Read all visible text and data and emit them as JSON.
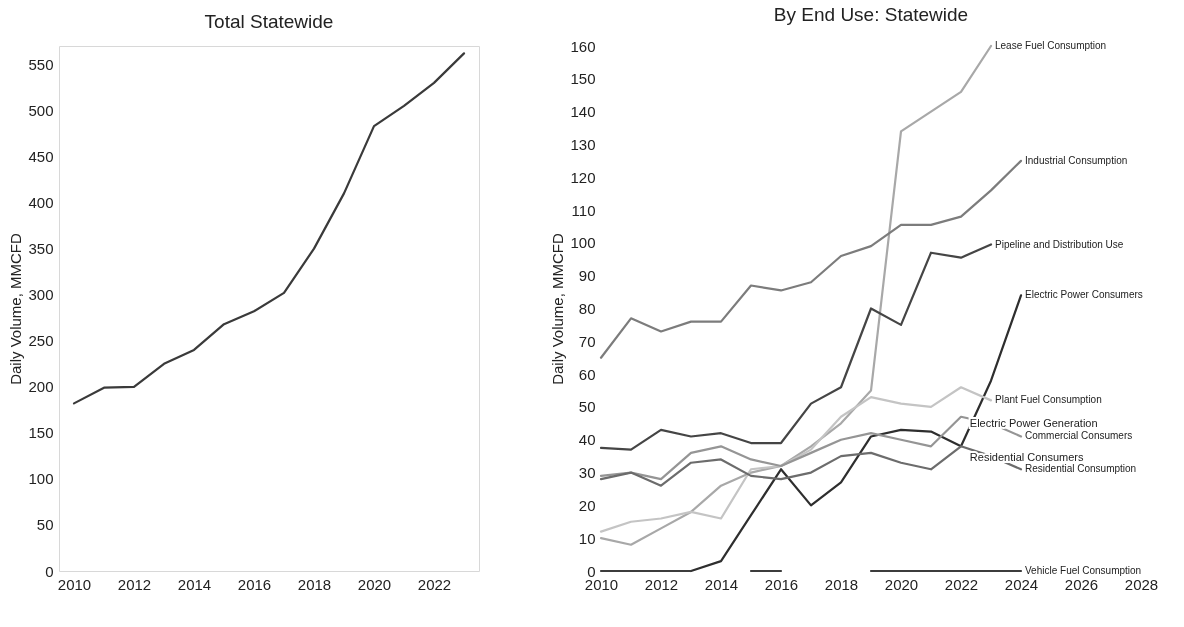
{
  "chart_data": [
    {
      "type": "line",
      "title": "Total Statewide",
      "ylabel": "Daily Volume, MMCFD",
      "x": [
        2010,
        2011,
        2012,
        2013,
        2014,
        2015,
        2016,
        2017,
        2018,
        2019,
        2020,
        2021,
        2022,
        2023
      ],
      "values": [
        182,
        199,
        200,
        225,
        240,
        268,
        282,
        302,
        350,
        410,
        483,
        505,
        530,
        562
      ],
      "color": "#3a3a3a",
      "xlim": [
        2009.5,
        2023.5
      ],
      "ylim": [
        0,
        570
      ],
      "xticks": [
        2010,
        2012,
        2014,
        2016,
        2018,
        2020,
        2022
      ],
      "yticks": [
        0,
        50,
        100,
        150,
        200,
        250,
        300,
        350,
        400,
        450,
        500,
        550
      ],
      "grid": false
    },
    {
      "type": "line",
      "title": "By End Use: Statewide",
      "ylabel": "Daily Volume, MMCFD",
      "series": [
        {
          "name": "Lease Fuel Consumption",
          "color": "#a8a8a8",
          "x": [
            2010,
            2011,
            2012,
            2013,
            2014,
            2015,
            2016,
            2017,
            2018,
            2019,
            2020,
            2021,
            2022,
            2023
          ],
          "values": [
            10,
            8,
            13,
            18,
            26,
            30,
            32,
            38,
            45,
            55,
            134,
            140,
            146,
            160
          ]
        },
        {
          "name": "Industrial Consumption",
          "color": "#7c7c7c",
          "x": [
            2010,
            2011,
            2012,
            2013,
            2014,
            2015,
            2016,
            2017,
            2018,
            2019,
            2020,
            2021,
            2022,
            2023,
            2024
          ],
          "values": [
            65,
            77,
            73,
            76,
            76,
            87,
            85.5,
            88,
            96,
            99,
            105.5,
            105.5,
            108,
            116,
            125
          ]
        },
        {
          "name": "Pipeline and Distribution Use",
          "color": "#454545",
          "x": [
            2010,
            2011,
            2012,
            2013,
            2014,
            2015,
            2016,
            2017,
            2018,
            2019,
            2020,
            2021,
            2022,
            2023
          ],
          "values": [
            37.5,
            37,
            43,
            41,
            42,
            39,
            39,
            51,
            56,
            80,
            75,
            97,
            95.5,
            99.5
          ]
        },
        {
          "name": "Electric Power Consumers",
          "color": "#2e2e2e",
          "x": [
            2013,
            2014,
            2015,
            2016,
            2017,
            2018,
            2019,
            2020,
            2021,
            2022,
            2023,
            2024
          ],
          "values": [
            0,
            3,
            17,
            31,
            20,
            27,
            41,
            43,
            42.5,
            38,
            58,
            84
          ]
        },
        {
          "name": "Plant Fuel Consumption",
          "color": "#c4c4c4",
          "x": [
            2010,
            2011,
            2012,
            2013,
            2014,
            2015,
            2016,
            2017,
            2018,
            2019,
            2020,
            2021,
            2022,
            2023
          ],
          "values": [
            12,
            15,
            16,
            18,
            16,
            31,
            32,
            37,
            47,
            53,
            51,
            50,
            56,
            52
          ]
        },
        {
          "name": "Commercial Consumers",
          "color": "#959595",
          "x": [
            2010,
            2011,
            2012,
            2013,
            2014,
            2015,
            2016,
            2017,
            2018,
            2019,
            2020,
            2021,
            2022,
            2023,
            2024
          ],
          "values": [
            29,
            30,
            28,
            36,
            38,
            34,
            32,
            36,
            40,
            42,
            40,
            38,
            47,
            45,
            41
          ]
        },
        {
          "name": "Residential Consumption",
          "color": "#6c6c6c",
          "x": [
            2010,
            2011,
            2012,
            2013,
            2014,
            2015,
            2016,
            2017,
            2018,
            2019,
            2020,
            2021,
            2022,
            2023,
            2024
          ],
          "values": [
            28,
            30,
            26,
            33,
            34,
            29,
            28,
            30,
            35,
            36,
            33,
            31,
            38,
            35,
            31
          ]
        },
        {
          "name": "Vehicle Fuel Consumption",
          "color": "#3c3c3c",
          "x": [
            2010,
            2011,
            2012,
            2013,
            2014,
            2015,
            2016,
            2017,
            2018,
            2019,
            2020,
            2021,
            2022,
            2023,
            2024
          ],
          "values": [
            0,
            0,
            0,
            0,
            null,
            0,
            0,
            null,
            null,
            0,
            0,
            0,
            0,
            0,
            0
          ]
        }
      ],
      "annotations": [
        "Electric Power Generation",
        "Residential Consumers"
      ],
      "xlim": [
        2010,
        2028
      ],
      "ylim": [
        0,
        160
      ],
      "xticks": [
        2010,
        2012,
        2014,
        2016,
        2018,
        2020,
        2022,
        2024,
        2026,
        2028
      ],
      "yticks": [
        0,
        10,
        20,
        30,
        40,
        50,
        60,
        70,
        80,
        90,
        100,
        110,
        120,
        130,
        140,
        150,
        160
      ],
      "grid": false
    }
  ]
}
